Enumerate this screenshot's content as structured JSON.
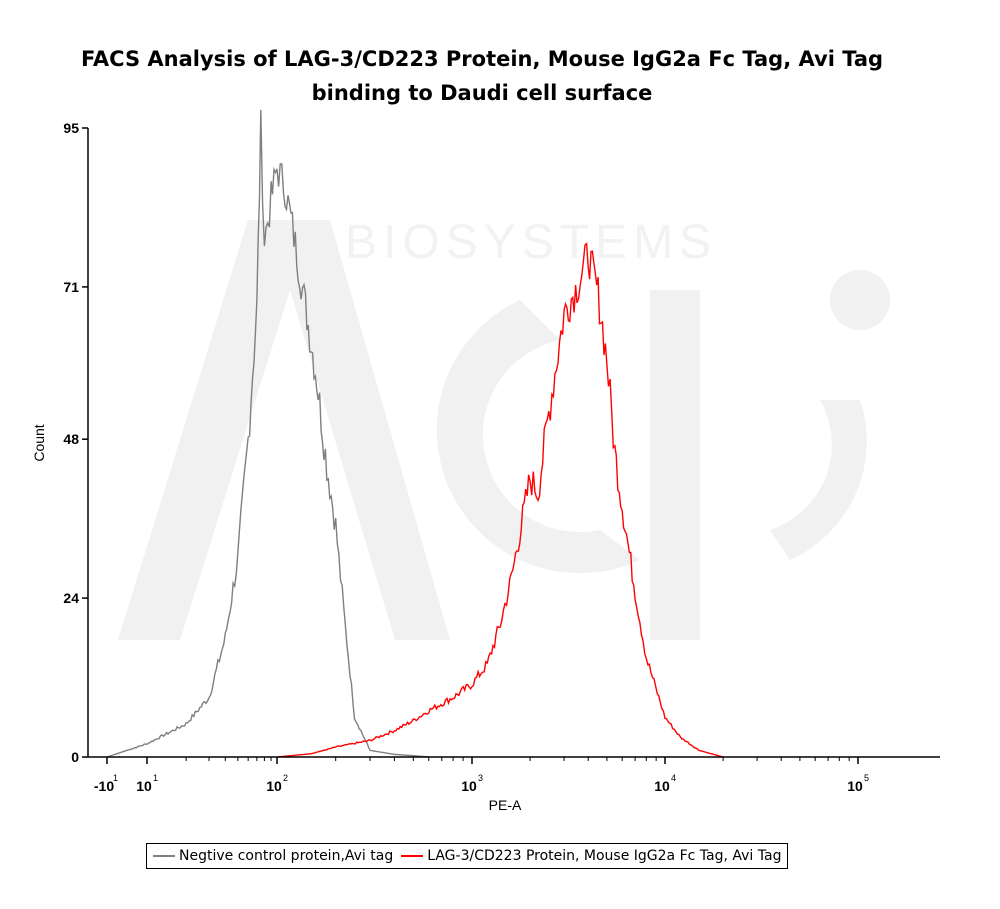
{
  "chart_data": {
    "type": "area",
    "title": [
      "FACS Analysis of LAG-3/CD223 Protein, Mouse IgG2a Fc Tag, Avi Tag",
      "binding to Daudi cell surface"
    ],
    "xlabel": "PE-A",
    "ylabel": "Count",
    "x_scale": "biexponential (log)",
    "ylim": [
      0,
      95
    ],
    "y_ticks": [
      0,
      24,
      48,
      71,
      95
    ],
    "x_ticks": [
      {
        "base": "-10",
        "exp": "1",
        "value": -10
      },
      {
        "base": "10",
        "exp": "1",
        "value": 10
      },
      {
        "base": "10",
        "exp": "2",
        "value": 100
      },
      {
        "base": "10",
        "exp": "3",
        "value": 1000
      },
      {
        "base": "10",
        "exp": "4",
        "value": 10000
      },
      {
        "base": "10",
        "exp": "5",
        "value": 100000
      }
    ],
    "grid": false,
    "legend_position": "bottom",
    "series": [
      {
        "name": "Negtive control protein,Avi tag",
        "color": "#7f7f7f",
        "x": [
          -10,
          10,
          20,
          30,
          40,
          50,
          60,
          70,
          75,
          80,
          90,
          100,
          110,
          120,
          140,
          160,
          180,
          200,
          220,
          250,
          300,
          400,
          500,
          600
        ],
        "y": [
          0,
          2,
          5,
          9,
          18,
          30,
          48,
          68,
          95,
          78,
          84,
          89,
          86,
          80,
          68,
          57,
          44,
          35,
          22,
          6,
          1,
          0.4,
          0.2,
          0
        ]
      },
      {
        "name": "LAG-3/CD223 Protein, Mouse IgG2a Fc Tag, Avi Tag",
        "color": "#ff0000",
        "x": [
          100,
          150,
          200,
          300,
          400,
          500,
          600,
          800,
          1000,
          1200,
          1400,
          1600,
          1800,
          2000,
          2200,
          2500,
          3000,
          3500,
          4000,
          4500,
          5000,
          5500,
          6000,
          7000,
          8000,
          10000,
          12000,
          15000,
          20000
        ],
        "y": [
          0,
          0.5,
          1.5,
          2.5,
          4,
          5.5,
          7,
          9,
          11,
          14,
          20,
          27,
          35,
          42,
          40,
          52,
          67,
          71,
          76,
          70,
          60,
          46,
          38,
          25,
          15,
          6,
          3,
          1,
          0
        ]
      }
    ]
  }
}
